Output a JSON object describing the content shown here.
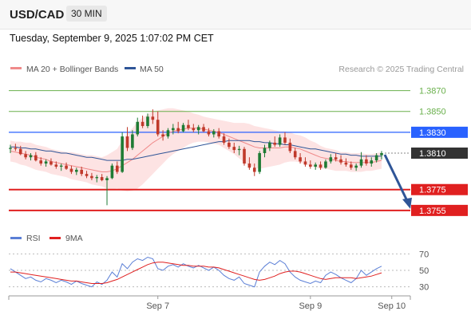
{
  "header": {
    "symbol": "USD/CAD",
    "timeframe": "30 MIN",
    "datetime": "Tuesday, September 9, 2025 1:07:02 PM CET"
  },
  "legend": {
    "ma20": "MA 20 + Bollinger Bands",
    "ma50": "MA 50",
    "credit": "Research © 2025 Trading Central",
    "rsi": "RSI",
    "ma9": "9MA"
  },
  "colors": {
    "up": "#1e7b34",
    "down": "#c0392b",
    "ma20": "#f08a8a",
    "ma50": "#2f5597",
    "band": "#fde3e3",
    "resistance": "#6ab04c",
    "pivot": "#2962ff",
    "support": "#e02020",
    "last": "#333333",
    "arrow": "#2f5597",
    "rsi": "#5b7fd6",
    "rsi_ma": "#e02020"
  },
  "chart_data": {
    "type": "candlestick",
    "ylim": [
      1.3735,
      1.3885
    ],
    "price_levels": [
      {
        "label": "1.3870",
        "value": 1.387,
        "kind": "resistance"
      },
      {
        "label": "1.3850",
        "value": 1.385,
        "kind": "resistance"
      },
      {
        "label": "1.3830",
        "value": 1.383,
        "kind": "pivot"
      },
      {
        "label": "1.3810",
        "value": 1.381,
        "kind": "last"
      },
      {
        "label": "1.3775",
        "value": 1.3775,
        "kind": "support"
      },
      {
        "label": "1.3755",
        "value": 1.3755,
        "kind": "support"
      }
    ],
    "last_price": 1.381,
    "forecast_arrow": {
      "from": 1.381,
      "to": 1.3755
    },
    "x_labels": [
      {
        "label": "Sep 7",
        "index": 29
      },
      {
        "label": "Sep 9",
        "index": 59
      },
      {
        "label": "Sep 10",
        "index": 75
      }
    ],
    "candles": [
      [
        1.3814,
        1.3818,
        1.381,
        1.3815
      ],
      [
        1.3815,
        1.3819,
        1.3812,
        1.3814
      ],
      [
        1.3814,
        1.3817,
        1.3808,
        1.3809
      ],
      [
        1.3809,
        1.3812,
        1.3804,
        1.3806
      ],
      [
        1.3806,
        1.381,
        1.3803,
        1.3808
      ],
      [
        1.3808,
        1.3811,
        1.3802,
        1.3803
      ],
      [
        1.3803,
        1.3806,
        1.3798,
        1.38
      ],
      [
        1.38,
        1.3804,
        1.3797,
        1.3802
      ],
      [
        1.3802,
        1.3805,
        1.3798,
        1.3799
      ],
      [
        1.3799,
        1.3802,
        1.3795,
        1.3797
      ],
      [
        1.3797,
        1.38,
        1.3793,
        1.3798
      ],
      [
        1.3798,
        1.3801,
        1.3794,
        1.3795
      ],
      [
        1.3795,
        1.3798,
        1.379,
        1.3792
      ],
      [
        1.3792,
        1.3796,
        1.3789,
        1.3794
      ],
      [
        1.3794,
        1.3797,
        1.3788,
        1.379
      ],
      [
        1.379,
        1.3793,
        1.3786,
        1.3788
      ],
      [
        1.3788,
        1.3791,
        1.3784,
        1.3786
      ],
      [
        1.3786,
        1.3789,
        1.3782,
        1.3787
      ],
      [
        1.3787,
        1.379,
        1.3783,
        1.3784
      ],
      [
        1.3784,
        1.3788,
        1.376,
        1.3786
      ],
      [
        1.3786,
        1.38,
        1.3785,
        1.3798
      ],
      [
        1.3798,
        1.3802,
        1.379,
        1.3792
      ],
      [
        1.3792,
        1.383,
        1.3791,
        1.3826
      ],
      [
        1.3826,
        1.3835,
        1.3812,
        1.3815
      ],
      [
        1.3815,
        1.3832,
        1.3813,
        1.3828
      ],
      [
        1.3828,
        1.3844,
        1.3826,
        1.384
      ],
      [
        1.384,
        1.3846,
        1.3834,
        1.3836
      ],
      [
        1.3836,
        1.3848,
        1.3834,
        1.3845
      ],
      [
        1.3845,
        1.3852,
        1.3838,
        1.3842
      ],
      [
        1.3842,
        1.385,
        1.3826,
        1.3828
      ],
      [
        1.3828,
        1.3832,
        1.3822,
        1.3826
      ],
      [
        1.3826,
        1.3834,
        1.3824,
        1.3832
      ],
      [
        1.3832,
        1.3838,
        1.3828,
        1.3834
      ],
      [
        1.3834,
        1.384,
        1.3829,
        1.3831
      ],
      [
        1.3831,
        1.3839,
        1.383,
        1.3837
      ],
      [
        1.3837,
        1.3842,
        1.3832,
        1.3834
      ],
      [
        1.3834,
        1.3838,
        1.383,
        1.3832
      ],
      [
        1.3832,
        1.3837,
        1.3828,
        1.3835
      ],
      [
        1.3835,
        1.3838,
        1.383,
        1.3831
      ],
      [
        1.3831,
        1.3834,
        1.3826,
        1.3828
      ],
      [
        1.3828,
        1.3833,
        1.3825,
        1.3831
      ],
      [
        1.3831,
        1.3834,
        1.3824,
        1.3826
      ],
      [
        1.3826,
        1.3829,
        1.3818,
        1.382
      ],
      [
        1.382,
        1.3824,
        1.3814,
        1.3816
      ],
      [
        1.3816,
        1.382,
        1.381,
        1.3813
      ],
      [
        1.3813,
        1.3817,
        1.3808,
        1.3814
      ],
      [
        1.3814,
        1.3816,
        1.3798,
        1.38
      ],
      [
        1.38,
        1.3806,
        1.3794,
        1.3796
      ],
      [
        1.3796,
        1.38,
        1.3788,
        1.3792
      ],
      [
        1.3792,
        1.3812,
        1.379,
        1.381
      ],
      [
        1.381,
        1.3818,
        1.3806,
        1.3815
      ],
      [
        1.3815,
        1.3822,
        1.3812,
        1.382
      ],
      [
        1.382,
        1.3826,
        1.3816,
        1.3818
      ],
      [
        1.3818,
        1.3828,
        1.3816,
        1.3825
      ],
      [
        1.3825,
        1.383,
        1.3818,
        1.382
      ],
      [
        1.382,
        1.3824,
        1.381,
        1.3812
      ],
      [
        1.3812,
        1.3815,
        1.3804,
        1.3806
      ],
      [
        1.3806,
        1.381,
        1.38,
        1.3802
      ],
      [
        1.3802,
        1.3806,
        1.3797,
        1.3799
      ],
      [
        1.3799,
        1.3803,
        1.3795,
        1.3797
      ],
      [
        1.3797,
        1.3801,
        1.3794,
        1.3799
      ],
      [
        1.3799,
        1.3802,
        1.3794,
        1.3796
      ],
      [
        1.3796,
        1.3804,
        1.3795,
        1.3802
      ],
      [
        1.3802,
        1.3809,
        1.38,
        1.3806
      ],
      [
        1.3806,
        1.381,
        1.3802,
        1.3804
      ],
      [
        1.3804,
        1.3808,
        1.3799,
        1.3801
      ],
      [
        1.3801,
        1.3805,
        1.3797,
        1.3799
      ],
      [
        1.3799,
        1.3802,
        1.3794,
        1.3796
      ],
      [
        1.3796,
        1.38,
        1.3793,
        1.3798
      ],
      [
        1.3798,
        1.3811,
        1.3796,
        1.3804
      ],
      [
        1.3804,
        1.3808,
        1.3798,
        1.38
      ],
      [
        1.38,
        1.3806,
        1.3797,
        1.3803
      ],
      [
        1.3803,
        1.381,
        1.3801,
        1.3808
      ],
      [
        1.3808,
        1.3812,
        1.3804,
        1.381
      ]
    ],
    "ma20": [
      1.3812,
      1.3811,
      1.381,
      1.3809,
      1.3808,
      1.3806,
      1.3805,
      1.3804,
      1.3802,
      1.3801,
      1.38,
      1.3799,
      1.3798,
      1.3797,
      1.3796,
      1.3795,
      1.3794,
      1.3793,
      1.3792,
      1.3792,
      1.3793,
      1.3795,
      1.3798,
      1.3801,
      1.3804,
      1.3808,
      1.3812,
      1.3816,
      1.382,
      1.3823,
      1.3826,
      1.3829,
      1.3831,
      1.3832,
      1.3833,
      1.3834,
      1.3834,
      1.3834,
      1.3833,
      1.3832,
      1.3831,
      1.383,
      1.3828,
      1.3826,
      1.3824,
      1.3822,
      1.382,
      1.3818,
      1.3816,
      1.3815,
      1.3815,
      1.3815,
      1.3815,
      1.3815,
      1.3816,
      1.3816,
      1.3815,
      1.3814,
      1.3812,
      1.381,
      1.3808,
      1.3806,
      1.3805,
      1.3804,
      1.3803,
      1.3802,
      1.3802,
      1.3801,
      1.3801,
      1.3801,
      1.3801,
      1.3801,
      1.3802,
      1.3803
    ],
    "ma50": [
      1.3816,
      1.3816,
      1.3815,
      1.3815,
      1.3814,
      1.3814,
      1.3813,
      1.3812,
      1.3812,
      1.3811,
      1.381,
      1.381,
      1.3809,
      1.3808,
      1.3807,
      1.3806,
      1.3806,
      1.3805,
      1.3804,
      1.3803,
      1.3803,
      1.3803,
      1.3803,
      1.3804,
      1.3804,
      1.3805,
      1.3806,
      1.3807,
      1.3808,
      1.3809,
      1.381,
      1.3811,
      1.3812,
      1.3813,
      1.3814,
      1.3815,
      1.3816,
      1.3817,
      1.3818,
      1.3819,
      1.382,
      1.3821,
      1.3821,
      1.3822,
      1.3822,
      1.3822,
      1.3822,
      1.3822,
      1.3821,
      1.3821,
      1.382,
      1.382,
      1.3819,
      1.3819,
      1.3818,
      1.3818,
      1.3817,
      1.3816,
      1.3815,
      1.3814,
      1.3814,
      1.3813,
      1.3812,
      1.3811,
      1.381,
      1.3809,
      1.3809,
      1.3808,
      1.3808,
      1.3807,
      1.3807,
      1.3807,
      1.3807,
      1.3807
    ],
    "band_width": [
      0.001,
      0.001,
      0.0011,
      0.0011,
      0.0012,
      0.0012,
      0.0012,
      0.0012,
      0.0012,
      0.0012,
      0.0012,
      0.0012,
      0.0013,
      0.0013,
      0.0013,
      0.0013,
      0.0014,
      0.0014,
      0.0014,
      0.0016,
      0.0018,
      0.0019,
      0.0024,
      0.0028,
      0.003,
      0.0032,
      0.0032,
      0.0031,
      0.003,
      0.0028,
      0.0026,
      0.0024,
      0.0022,
      0.002,
      0.0018,
      0.0016,
      0.0014,
      0.0013,
      0.0012,
      0.0012,
      0.0012,
      0.0012,
      0.0013,
      0.0014,
      0.0015,
      0.0017,
      0.0019,
      0.002,
      0.002,
      0.002,
      0.0019,
      0.0018,
      0.0017,
      0.0016,
      0.0015,
      0.0014,
      0.0013,
      0.0013,
      0.0013,
      0.0012,
      0.0012,
      0.0011,
      0.001,
      0.001,
      0.001,
      0.0009,
      0.0009,
      0.0009,
      0.0009,
      0.0009,
      0.0008,
      0.0008,
      0.0008,
      0.0008
    ],
    "rsi": {
      "ticks": [
        "70",
        "50",
        "30"
      ],
      "ylim": [
        20,
        80
      ],
      "values": [
        52,
        48,
        44,
        40,
        42,
        38,
        36,
        40,
        38,
        35,
        38,
        36,
        33,
        37,
        34,
        32,
        30,
        36,
        33,
        38,
        48,
        42,
        58,
        52,
        60,
        64,
        62,
        66,
        64,
        52,
        50,
        55,
        57,
        54,
        58,
        55,
        53,
        56,
        53,
        50,
        54,
        50,
        44,
        40,
        38,
        42,
        34,
        32,
        30,
        48,
        55,
        60,
        57,
        62,
        58,
        48,
        42,
        38,
        36,
        34,
        37,
        35,
        44,
        48,
        45,
        41,
        38,
        35,
        40,
        50,
        44,
        48,
        52,
        55
      ],
      "ma": [
        48,
        48,
        47,
        46,
        45,
        44,
        43,
        42,
        41,
        40,
        39,
        38,
        37,
        37,
        36,
        35,
        34,
        34,
        34,
        35,
        37,
        39,
        42,
        45,
        48,
        51,
        54,
        57,
        59,
        60,
        60,
        59,
        58,
        57,
        56,
        56,
        55,
        55,
        55,
        54,
        54,
        53,
        51,
        49,
        47,
        45,
        43,
        41,
        39,
        38,
        39,
        41,
        43,
        46,
        48,
        49,
        49,
        48,
        46,
        44,
        42,
        40,
        39,
        40,
        41,
        41,
        41,
        41,
        40,
        41,
        42,
        43,
        45,
        47
      ]
    }
  }
}
